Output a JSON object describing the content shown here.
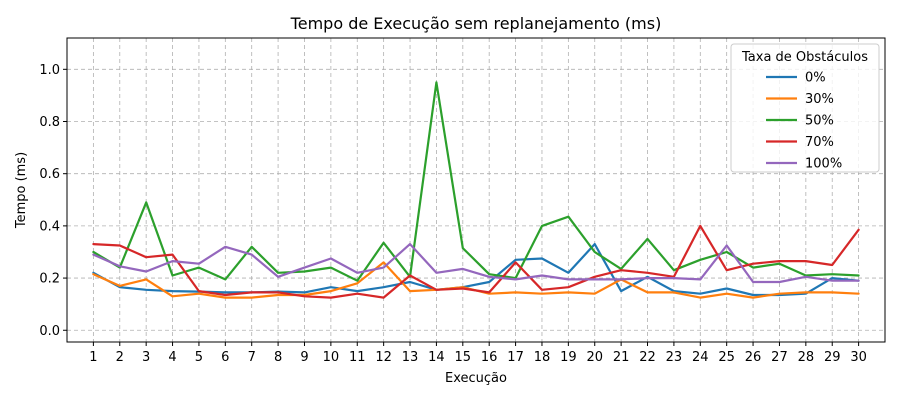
{
  "chart_data": {
    "type": "line",
    "title": "Tempo de Execução sem replanejamento (ms)",
    "xlabel": "Execução",
    "ylabel": "Tempo (ms)",
    "x": [
      1,
      2,
      3,
      4,
      5,
      6,
      7,
      8,
      9,
      10,
      11,
      12,
      13,
      14,
      15,
      16,
      17,
      18,
      19,
      20,
      21,
      22,
      23,
      24,
      25,
      26,
      27,
      28,
      29,
      30
    ],
    "xlim": [
      0,
      31
    ],
    "ylim": [
      -0.045,
      1.12
    ],
    "yticks": [
      0.0,
      0.2,
      0.4,
      0.6,
      0.8,
      1.0
    ],
    "grid": true,
    "legend": {
      "title": "Taxa de Obstáculos",
      "placement": "top-right"
    },
    "series": [
      {
        "name": "0%",
        "color": "#1f77b4",
        "values": [
          0.22,
          0.165,
          0.155,
          0.15,
          0.148,
          0.145,
          0.145,
          0.148,
          0.145,
          0.165,
          0.15,
          0.165,
          0.185,
          0.155,
          0.165,
          0.185,
          0.27,
          0.275,
          0.22,
          0.33,
          0.15,
          0.205,
          0.15,
          0.14,
          0.16,
          0.135,
          0.135,
          0.14,
          0.2,
          0.19
        ]
      },
      {
        "name": "30%",
        "color": "#ff7f0e",
        "values": [
          0.215,
          0.17,
          0.195,
          0.13,
          0.14,
          0.125,
          0.125,
          0.135,
          0.135,
          0.15,
          0.18,
          0.26,
          0.15,
          0.155,
          0.165,
          0.14,
          0.145,
          0.14,
          0.145,
          0.14,
          0.195,
          0.145,
          0.145,
          0.125,
          0.14,
          0.125,
          0.14,
          0.145,
          0.145,
          0.14
        ]
      },
      {
        "name": "50%",
        "color": "#2ca02c",
        "values": [
          0.3,
          0.24,
          0.49,
          0.21,
          0.24,
          0.195,
          0.32,
          0.22,
          0.225,
          0.24,
          0.19,
          0.335,
          0.205,
          0.95,
          0.315,
          0.215,
          0.2,
          0.4,
          0.435,
          0.3,
          0.235,
          0.35,
          0.23,
          0.27,
          0.3,
          0.24,
          0.255,
          0.21,
          0.215,
          0.21
        ]
      },
      {
        "name": "70%",
        "color": "#d62728",
        "values": [
          0.33,
          0.325,
          0.28,
          0.29,
          0.15,
          0.135,
          0.145,
          0.145,
          0.13,
          0.125,
          0.14,
          0.125,
          0.21,
          0.155,
          0.16,
          0.145,
          0.26,
          0.155,
          0.165,
          0.205,
          0.23,
          0.22,
          0.205,
          0.4,
          0.23,
          0.255,
          0.265,
          0.265,
          0.25,
          0.385
        ]
      },
      {
        "name": "100%",
        "color": "#9467bd",
        "values": [
          0.29,
          0.245,
          0.225,
          0.265,
          0.255,
          0.32,
          0.29,
          0.205,
          0.24,
          0.275,
          0.22,
          0.24,
          0.33,
          0.22,
          0.235,
          0.205,
          0.195,
          0.21,
          0.195,
          0.195,
          0.195,
          0.2,
          0.2,
          0.195,
          0.325,
          0.185,
          0.185,
          0.205,
          0.19,
          0.19
        ]
      }
    ]
  }
}
